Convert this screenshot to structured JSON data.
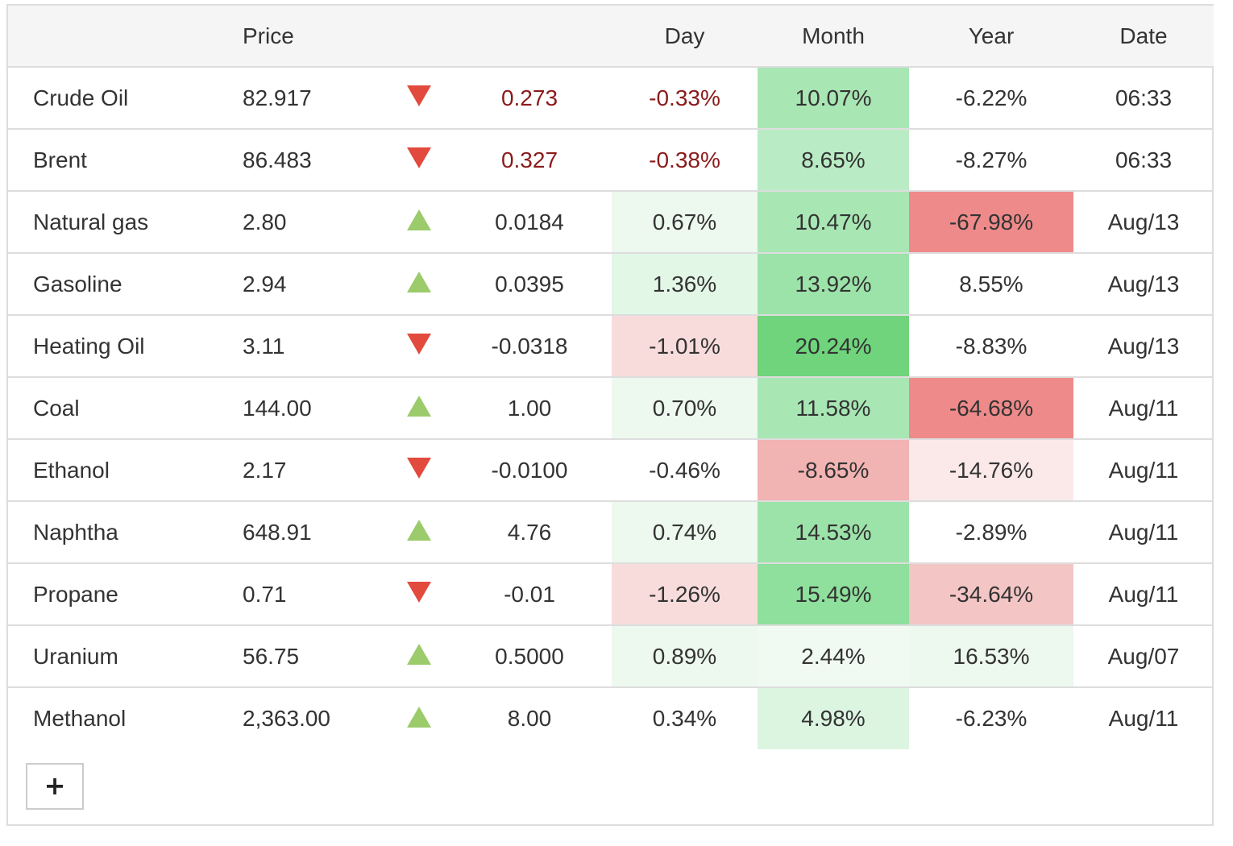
{
  "colors": {
    "header_bg": "#f5f5f5",
    "border": "#dddddd",
    "negative_text": "#8b1a1a",
    "arrow_down": "#e24a3d",
    "arrow_up": "#9bcb6b"
  },
  "table": {
    "headers": {
      "name": "",
      "price": "Price",
      "arrow": "",
      "change": "",
      "day": "Day",
      "month": "Month",
      "year": "Year",
      "date": "Date"
    },
    "rows": [
      {
        "name": "Crude Oil",
        "price": "82.917",
        "direction": "down",
        "change": "0.273",
        "day": "-0.33%",
        "month": "10.07%",
        "year": "-6.22%",
        "date": "06:33",
        "change_negative": true,
        "day_negative": true,
        "day_bg": "",
        "month_bg": "#a8e6b4",
        "year_bg": ""
      },
      {
        "name": "Brent",
        "price": "86.483",
        "direction": "down",
        "change": "0.327",
        "day": "-0.38%",
        "month": "8.65%",
        "year": "-8.27%",
        "date": "06:33",
        "change_negative": true,
        "day_negative": true,
        "day_bg": "",
        "month_bg": "#b9ecc4",
        "year_bg": ""
      },
      {
        "name": "Natural gas",
        "price": "2.80",
        "direction": "up",
        "change": "0.0184",
        "day": "0.67%",
        "month": "10.47%",
        "year": "-67.98%",
        "date": "Aug/13",
        "change_negative": false,
        "day_negative": false,
        "day_bg": "#edf8ef",
        "month_bg": "#a8e6b4",
        "year_bg": "#ef8a8a"
      },
      {
        "name": "Gasoline",
        "price": "2.94",
        "direction": "up",
        "change": "0.0395",
        "day": "1.36%",
        "month": "13.92%",
        "year": "8.55%",
        "date": "Aug/13",
        "change_negative": false,
        "day_negative": false,
        "day_bg": "#e3f7e7",
        "month_bg": "#9ce3a9",
        "year_bg": ""
      },
      {
        "name": "Heating Oil",
        "price": "3.11",
        "direction": "down",
        "change": "-0.0318",
        "day": "-1.01%",
        "month": "20.24%",
        "year": "-8.83%",
        "date": "Aug/13",
        "change_negative": false,
        "day_negative": false,
        "day_bg": "#f8dcdc",
        "month_bg": "#6fd47c",
        "year_bg": ""
      },
      {
        "name": "Coal",
        "price": "144.00",
        "direction": "up",
        "change": "1.00",
        "day": "0.70%",
        "month": "11.58%",
        "year": "-64.68%",
        "date": "Aug/11",
        "change_negative": false,
        "day_negative": false,
        "day_bg": "#edf8ef",
        "month_bg": "#a8e6b4",
        "year_bg": "#ef8a8a"
      },
      {
        "name": "Ethanol",
        "price": "2.17",
        "direction": "down",
        "change": "-0.0100",
        "day": "-0.46%",
        "month": "-8.65%",
        "year": "-14.76%",
        "date": "Aug/11",
        "change_negative": false,
        "day_negative": false,
        "day_bg": "",
        "month_bg": "#f2b3b3",
        "year_bg": "#fbe9e9"
      },
      {
        "name": "Naphtha",
        "price": "648.91",
        "direction": "up",
        "change": "4.76",
        "day": "0.74%",
        "month": "14.53%",
        "year": "-2.89%",
        "date": "Aug/11",
        "change_negative": false,
        "day_negative": false,
        "day_bg": "#edf8ef",
        "month_bg": "#9ce3a9",
        "year_bg": ""
      },
      {
        "name": "Propane",
        "price": "0.71",
        "direction": "down",
        "change": "-0.01",
        "day": "-1.26%",
        "month": "15.49%",
        "year": "-34.64%",
        "date": "Aug/11",
        "change_negative": false,
        "day_negative": false,
        "day_bg": "#f8dcdc",
        "month_bg": "#8ee09c",
        "year_bg": "#f4c5c5"
      },
      {
        "name": "Uranium",
        "price": "56.75",
        "direction": "up",
        "change": "0.5000",
        "day": "0.89%",
        "month": "2.44%",
        "year": "16.53%",
        "date": "Aug/07",
        "change_negative": false,
        "day_negative": false,
        "day_bg": "#edf8ef",
        "month_bg": "#f0f9f2",
        "year_bg": "#edf8ef"
      },
      {
        "name": "Methanol",
        "price": "2,363.00",
        "direction": "up",
        "change": "8.00",
        "day": "0.34%",
        "month": "4.98%",
        "year": "-6.23%",
        "date": "Aug/11",
        "change_negative": false,
        "day_negative": false,
        "day_bg": "",
        "month_bg": "#dcf5e1",
        "year_bg": ""
      }
    ]
  },
  "add_button": {
    "label": "+",
    "icon": "plus-icon"
  }
}
